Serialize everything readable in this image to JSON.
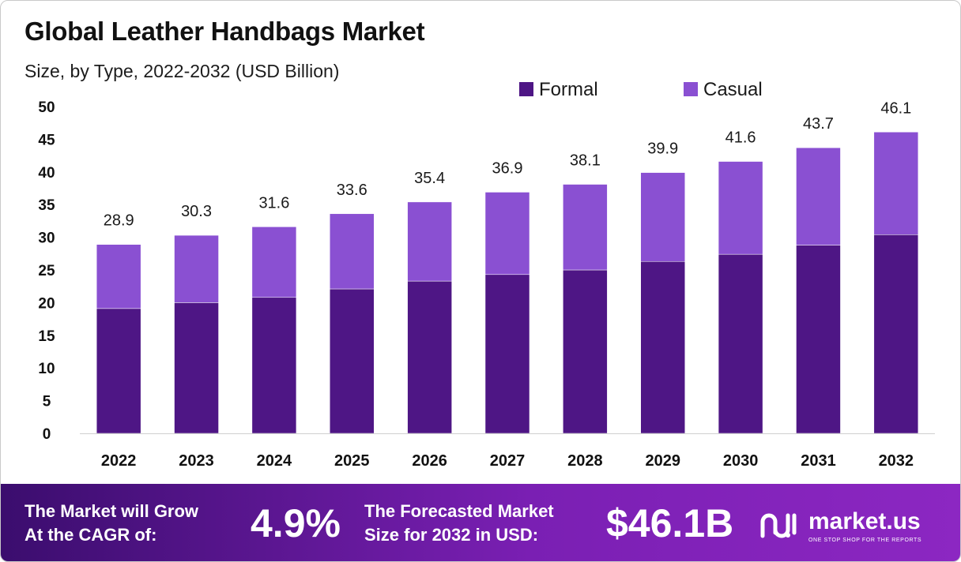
{
  "chart_data": {
    "type": "stacked-bar",
    "title": "Global Leather Handbags Market",
    "subtitle": "Size, by Type, 2022-2032 (USD Billion)",
    "categories": [
      "2022",
      "2023",
      "2024",
      "2025",
      "2026",
      "2027",
      "2028",
      "2029",
      "2030",
      "2031",
      "2032"
    ],
    "series": [
      {
        "name": "Formal",
        "color": "#4e1685",
        "values": [
          19.1,
          20.0,
          20.8,
          22.1,
          23.3,
          24.3,
          25.0,
          26.3,
          27.4,
          28.8,
          30.4
        ]
      },
      {
        "name": "Casual",
        "color": "#8a50d2",
        "values": [
          9.8,
          10.3,
          10.8,
          11.5,
          12.1,
          12.6,
          13.1,
          13.6,
          14.2,
          14.9,
          15.7
        ]
      }
    ],
    "totals": [
      "28.9",
      "30.3",
      "31.6",
      "33.6",
      "35.4",
      "36.9",
      "38.1",
      "39.9",
      "41.6",
      "43.7",
      "46.1"
    ],
    "ylim": [
      0,
      50
    ],
    "yticks": [
      "0",
      "5",
      "10",
      "15",
      "20",
      "25",
      "30",
      "35",
      "40",
      "45",
      "50"
    ],
    "legend_position": "top-right",
    "xlabel": "",
    "ylabel": ""
  },
  "footer": {
    "cagr_text_line1": "The Market will Grow",
    "cagr_text_line2": "At the CAGR of:",
    "cagr_value": "4.9%",
    "forecast_text_line1": "The Forecasted Market",
    "forecast_text_line2": "Size for 2032 in USD:",
    "forecast_value": "$46.1B",
    "logo_name": "market.us",
    "logo_tagline": "ONE STOP SHOP FOR THE REPORTS",
    "logo_icon": "market-us-logo-icon"
  }
}
